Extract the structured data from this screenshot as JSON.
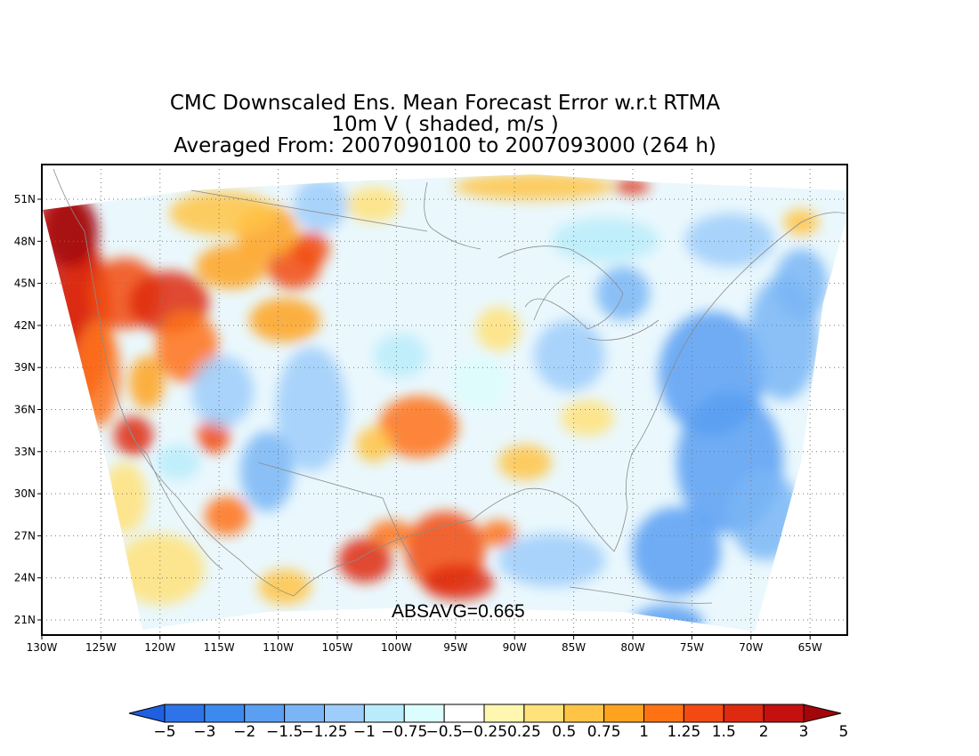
{
  "figure": {
    "title_line1": "CMC Downscaled Ens. Mean Forecast Error w.r.t RTMA",
    "title_line2": "10m V ( shaded, m/s )",
    "title_line3": "Averaged From: 2007090100 to 2007093000 (264 h)",
    "annotation": "ABSAVG=0.665"
  },
  "map": {
    "lon_ticks": [
      "130W",
      "125W",
      "120W",
      "115W",
      "110W",
      "105W",
      "100W",
      "95W",
      "90W",
      "85W",
      "80W",
      "75W",
      "70W",
      "65W"
    ],
    "lat_ticks": [
      "51N",
      "48N",
      "45N",
      "42N",
      "39N",
      "36N",
      "33N",
      "30N",
      "27N",
      "24N",
      "21N"
    ]
  },
  "colorbar": {
    "labels": [
      "-5",
      "-3",
      "-2",
      "-1.5",
      "-1.25",
      "-1",
      "-0.75",
      "-0.5",
      "-0.25",
      "0.25",
      "0.5",
      "0.75",
      "1",
      "1.25",
      "1.5",
      "2",
      "3",
      "5"
    ],
    "colors": [
      "#1f5fe0",
      "#2e74e8",
      "#3d8aef",
      "#5a9ff2",
      "#7ab6f6",
      "#9dcdfa",
      "#b8ecfa",
      "#dcfdfd",
      "#ffffff",
      "#fff6b0",
      "#ffe27a",
      "#ffc445",
      "#ffa21e",
      "#ff7214",
      "#f24a12",
      "#de2a10",
      "#c4100e",
      "#a3060a"
    ]
  },
  "colors": {
    "frame": "#000000",
    "grid": "#777777",
    "coast": "#8c8c8c"
  }
}
